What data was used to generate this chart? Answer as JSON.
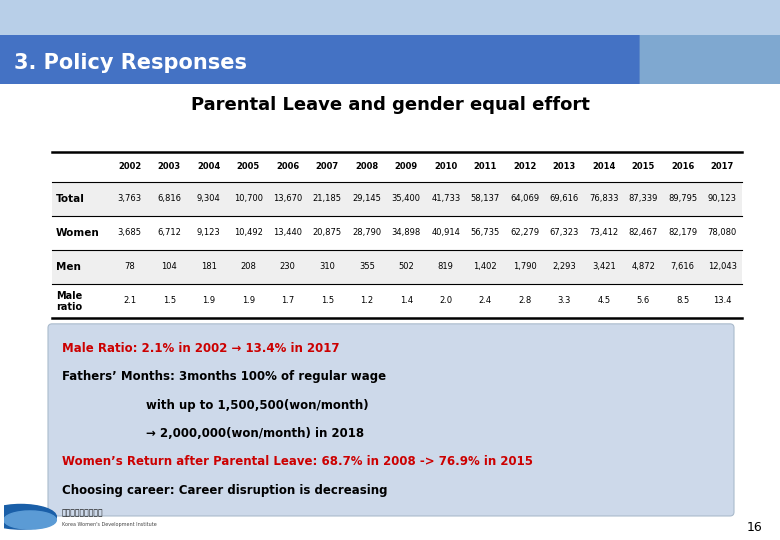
{
  "title": "3. Policy Responses",
  "subtitle": "Parental Leave and gender equal effort",
  "years": [
    "2002",
    "2003",
    "2004",
    "2005",
    "2006",
    "2007",
    "2008",
    "2009",
    "2010",
    "2011",
    "2012",
    "2013",
    "2014",
    "2015",
    "2016",
    "2017"
  ],
  "rows": {
    "Total": [
      "3,763",
      "6,816",
      "9,304",
      "10,700",
      "13,670",
      "21,185",
      "29,145",
      "35,400",
      "41,733",
      "58,137",
      "64,069",
      "69,616",
      "76,833",
      "87,339",
      "89,795",
      "90,123"
    ],
    "Women": [
      "3,685",
      "6,712",
      "9,123",
      "10,492",
      "13,440",
      "20,875",
      "28,790",
      "34,898",
      "40,914",
      "56,735",
      "62,279",
      "67,323",
      "73,412",
      "82,467",
      "82,179",
      "78,080"
    ],
    "Men": [
      "78",
      "104",
      "181",
      "208",
      "230",
      "310",
      "355",
      "502",
      "819",
      "1,402",
      "1,790",
      "2,293",
      "3,421",
      "4,872",
      "7,616",
      "12,043"
    ],
    "Male\nratio": [
      "2.1",
      "1.5",
      "1.9",
      "1.9",
      "1.7",
      "1.5",
      "1.2",
      "1.4",
      "2.0",
      "2.4",
      "2.8",
      "3.3",
      "4.5",
      "5.6",
      "8.5",
      "13.4"
    ]
  },
  "row_order": [
    "Total",
    "Women",
    "Men",
    "Male\nratio"
  ],
  "row_bgs": [
    "#efefef",
    "#ffffff",
    "#efefef",
    "#ffffff"
  ],
  "header_bg": "#4472c4",
  "header_accent": "#7fa8d0",
  "header_top_stripe": "#b8cfe8",
  "slide_bg": "#ffffff",
  "note_bg": "#cdd9ea",
  "red_text": "#cc0000",
  "black_text": "#000000",
  "note_lines": [
    {
      "text": "Male Ratio: 2.1% in 2002 → 13.4% in 2017",
      "color": "#cc0000",
      "bold": true,
      "indent": 0
    },
    {
      "text": "Fathers’ Months: 3months 100% of regular wage",
      "color": "#000000",
      "bold": true,
      "indent": 0
    },
    {
      "text": "                        with up to 1,500,500(won/month)",
      "color": "#000000",
      "bold": true,
      "indent": 0
    },
    {
      "text": "                        → 2,000,000(won/month) in 2018",
      "color": "#000000",
      "bold": true,
      "indent": 0
    },
    {
      "text": "Women’s Return after Parental Leave: 68.7% in 2008 -> 76.9% in 2015",
      "color": "#cc0000",
      "bold": true,
      "indent": 0
    },
    {
      "text": "Choosing career: Career disruption is decreasing",
      "color": "#000000",
      "bold": true,
      "indent": 0
    }
  ],
  "page_num": "16"
}
